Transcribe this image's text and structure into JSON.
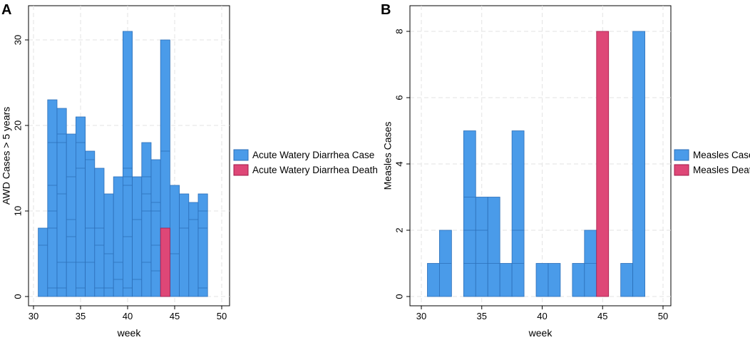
{
  "panels": {
    "A": {
      "letter": "A"
    },
    "B": {
      "letter": "B"
    }
  },
  "colors": {
    "case_fill": "#4a9be9",
    "case_edge": "#2c6fb8",
    "death_fill": "#de4777",
    "death_edge": "#a31b4a"
  },
  "chart_data": [
    {
      "type": "bar",
      "subtype": "stacked histogram",
      "panel": "A",
      "xlabel": "week",
      "ylabel": "AWD Cases > 5 years",
      "xlim": [
        30,
        50
      ],
      "ylim": [
        0,
        31
      ],
      "xticks": [
        30,
        35,
        40,
        45,
        50
      ],
      "yticks": [
        0,
        10,
        20,
        30
      ],
      "grid": true,
      "legend": {
        "placement": "right",
        "entries": [
          "Acute Watery Diarrhea Case",
          "Acute Watery Diarrhea Death"
        ]
      },
      "series": [
        {
          "name": "Acute Watery Diarrhea Case",
          "color": "#4a9be9",
          "bars": [
            {
              "x0": 30.5,
              "x1": 31.5,
              "value": 8,
              "segments": [
                6
              ]
            },
            {
              "x0": 31.5,
              "x1": 32.5,
              "value": 23,
              "segments": [
                1,
                8,
                10,
                13,
                18
              ]
            },
            {
              "x0": 32.5,
              "x1": 33.5,
              "value": 22,
              "segments": [
                1,
                4,
                12,
                18,
                19
              ]
            },
            {
              "x0": 33.5,
              "x1": 34.5,
              "value": 19,
              "segments": [
                4,
                7,
                9,
                14
              ]
            },
            {
              "x0": 34.5,
              "x1": 35.5,
              "value": 21,
              "segments": [
                1,
                4,
                15,
                18
              ]
            },
            {
              "x0": 35.5,
              "x1": 36.5,
              "value": 17,
              "segments": [
                4,
                8,
                16
              ]
            },
            {
              "x0": 36.5,
              "x1": 37.5,
              "value": 15,
              "segments": [
                1,
                6,
                8
              ]
            },
            {
              "x0": 37.5,
              "x1": 38.5,
              "value": 12,
              "segments": [
                1,
                5
              ]
            },
            {
              "x0": 38.5,
              "x1": 39.5,
              "value": 14,
              "segments": [
                2,
                4
              ]
            },
            {
              "x0": 39.5,
              "x1": 40.5,
              "value": 31,
              "segments": [
                1,
                7,
                13,
                14,
                15
              ]
            },
            {
              "x0": 40.5,
              "x1": 41.5,
              "value": 14,
              "segments": [
                2,
                9
              ]
            },
            {
              "x0": 41.5,
              "x1": 42.5,
              "value": 18,
              "segments": [
                4,
                10,
                12,
                14
              ]
            },
            {
              "x0": 42.5,
              "x1": 43.5,
              "value": 16,
              "segments": [
                3,
                6,
                10,
                11
              ]
            },
            {
              "x0": 43.5,
              "x1": 44.5,
              "value": 30,
              "segments": [
                17
              ]
            },
            {
              "x0": 44.5,
              "x1": 45.5,
              "value": 13,
              "segments": [
                5
              ]
            },
            {
              "x0": 45.5,
              "x1": 46.5,
              "value": 12,
              "segments": [
                8
              ]
            },
            {
              "x0": 46.5,
              "x1": 47.5,
              "value": 11,
              "segments": [
                9
              ]
            },
            {
              "x0": 47.5,
              "x1": 48.5,
              "value": 12,
              "segments": [
                1,
                8,
                10
              ]
            }
          ]
        },
        {
          "name": "Acute Watery Diarrhea Death",
          "color": "#de4777",
          "bars": [
            {
              "x0": 43.5,
              "x1": 44.5,
              "value": 8
            }
          ]
        }
      ]
    },
    {
      "type": "bar",
      "subtype": "stacked histogram",
      "panel": "B",
      "xlabel": "week",
      "ylabel": "Measles Cases",
      "xlim": [
        30,
        50
      ],
      "ylim": [
        0,
        8
      ],
      "xticks": [
        30,
        35,
        40,
        45,
        50
      ],
      "yticks": [
        0,
        2,
        4,
        6,
        8
      ],
      "grid": true,
      "legend": {
        "placement": "right",
        "entries": [
          "Measles Case",
          "Measles Death"
        ]
      },
      "series": [
        {
          "name": "Measles Case",
          "color": "#4a9be9",
          "bars": [
            {
              "x0": 30.5,
              "x1": 31.5,
              "value": 1,
              "segments": []
            },
            {
              "x0": 31.5,
              "x1": 32.5,
              "value": 2,
              "segments": [
                1
              ]
            },
            {
              "x0": 33.5,
              "x1": 34.5,
              "value": 5,
              "segments": [
                1,
                2,
                3
              ]
            },
            {
              "x0": 34.5,
              "x1": 35.5,
              "value": 3,
              "segments": [
                1,
                2
              ]
            },
            {
              "x0": 35.5,
              "x1": 36.5,
              "value": 3,
              "segments": [
                1
              ]
            },
            {
              "x0": 36.5,
              "x1": 37.5,
              "value": 1,
              "segments": []
            },
            {
              "x0": 37.5,
              "x1": 38.5,
              "value": 5,
              "segments": [
                1,
                2
              ]
            },
            {
              "x0": 39.5,
              "x1": 40.5,
              "value": 1,
              "segments": []
            },
            {
              "x0": 40.5,
              "x1": 41.5,
              "value": 1,
              "segments": []
            },
            {
              "x0": 42.5,
              "x1": 43.5,
              "value": 1,
              "segments": []
            },
            {
              "x0": 43.5,
              "x1": 44.5,
              "value": 2,
              "segments": [
                1
              ]
            },
            {
              "x0": 46.5,
              "x1": 47.5,
              "value": 1,
              "segments": []
            },
            {
              "x0": 47.5,
              "x1": 48.5,
              "value": 8,
              "segments": []
            }
          ]
        },
        {
          "name": "Measles Death",
          "color": "#de4777",
          "bars": [
            {
              "x0": 44.5,
              "x1": 45.5,
              "value": 8
            }
          ]
        }
      ]
    }
  ]
}
